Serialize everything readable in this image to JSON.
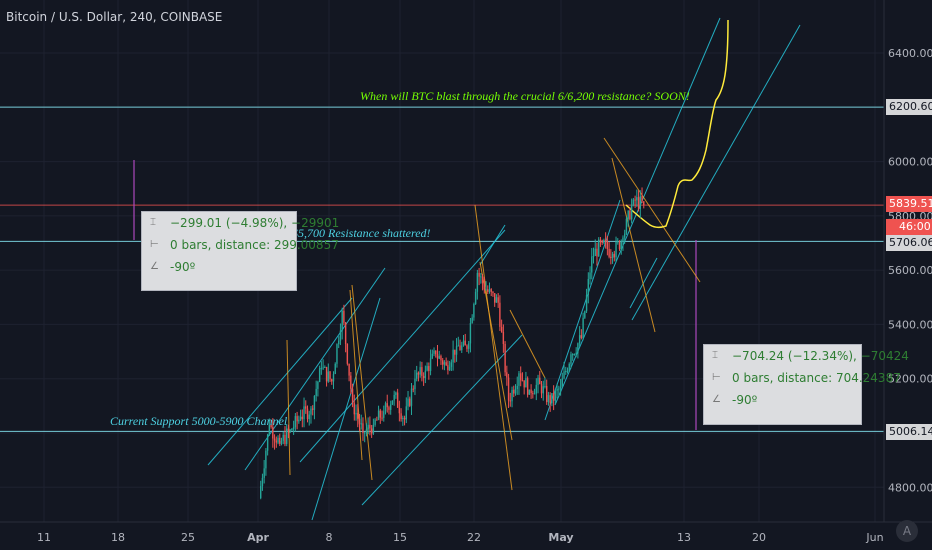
{
  "header": {
    "symbol_title": "Bitcoin / U.S. Dollar, 240, COINBASE"
  },
  "colors": {
    "background": "#131722",
    "up": "#26a69a",
    "down": "#ef5350",
    "channel": "#26c6da",
    "fan": "#f5a623",
    "projection": "#ffeb3b",
    "annotation_green": "#76ff03",
    "annotation_cyan": "#4dd0e1"
  },
  "annotations": {
    "resistance_question": "When will BTC blast through the crucial 6/6,200 resistance? SOON!",
    "resistance_shattered": "$5,700 Resistance shattered!",
    "support_channel": "Current Support 5000-5900 Channel"
  },
  "measure_left": {
    "line1": "−299.01 (−4.98%), −29901",
    "line2": "0 bars, distance: 299.00857",
    "line3": "-90º"
  },
  "measure_right": {
    "line1": "−704.24 (−12.34%), −70424",
    "line2": "0 bars, distance: 704.24387",
    "line3": "-90º"
  },
  "price_boxes": {
    "p6200": "6200.60",
    "last": "5839.51",
    "countdown": "46:00",
    "p5706": "5706.06",
    "p5006": "5006.14"
  },
  "logo_text": "A",
  "chart_data": {
    "type": "candlestick",
    "title": "Bitcoin / U.S. Dollar, 240, COINBASE",
    "interval": "240",
    "y_ticks": [
      4800,
      5000,
      5200,
      5400,
      5600,
      5800,
      6000,
      6200,
      6400
    ],
    "y_tick_labels": [
      "4800.00",
      "5000.00",
      "5200.00",
      "5400.00",
      "5600.00",
      "5800.00",
      "6000.00",
      "6200.00",
      "6400.00"
    ],
    "x_ticks": [
      "11",
      "18",
      "25",
      "Apr",
      "8",
      "15",
      "22",
      "May",
      "13",
      "20",
      "Jun"
    ],
    "ylim": [
      4700,
      6530
    ],
    "horizontal_levels": [
      6200.6,
      5839.51,
      5706.06,
      5006.14
    ],
    "price_close_path": [
      [
        "Apr",
        4760
      ],
      [
        "2",
        5030
      ],
      [
        "3",
        4960
      ],
      [
        "4",
        5010
      ],
      [
        "5",
        5060
      ],
      [
        "6",
        5090
      ],
      [
        "7",
        5240
      ],
      [
        "8",
        5190
      ],
      [
        "9",
        5450
      ],
      [
        "10",
        5110
      ],
      [
        "11",
        5000
      ],
      [
        "12",
        5030
      ],
      [
        "13",
        5080
      ],
      [
        "14",
        5140
      ],
      [
        "15",
        5050
      ],
      [
        "16",
        5200
      ],
      [
        "17",
        5230
      ],
      [
        "18",
        5290
      ],
      [
        "19",
        5250
      ],
      [
        "20",
        5320
      ],
      [
        "21",
        5310
      ],
      [
        "22",
        5590
      ],
      [
        "23",
        5520
      ],
      [
        "24",
        5480
      ],
      [
        "25",
        5120
      ],
      [
        "26",
        5220
      ],
      [
        "27",
        5160
      ],
      [
        "28",
        5180
      ],
      [
        "29",
        5110
      ],
      [
        "30",
        5170
      ],
      [
        "May 1",
        5290
      ],
      [
        "2",
        5350
      ],
      [
        "3",
        5650
      ],
      [
        "4",
        5700
      ],
      [
        "5",
        5660
      ],
      [
        "6",
        5720
      ],
      [
        "7",
        5860
      ],
      [
        "8",
        5839.51
      ]
    ],
    "measurements": [
      {
        "change": -299.01,
        "percent": -4.98,
        "bars": 0,
        "distance": 299.00857,
        "angle": -90
      },
      {
        "change": -704.24,
        "percent": -12.34,
        "bars": 0,
        "distance": 704.24387,
        "angle": -90
      }
    ]
  }
}
